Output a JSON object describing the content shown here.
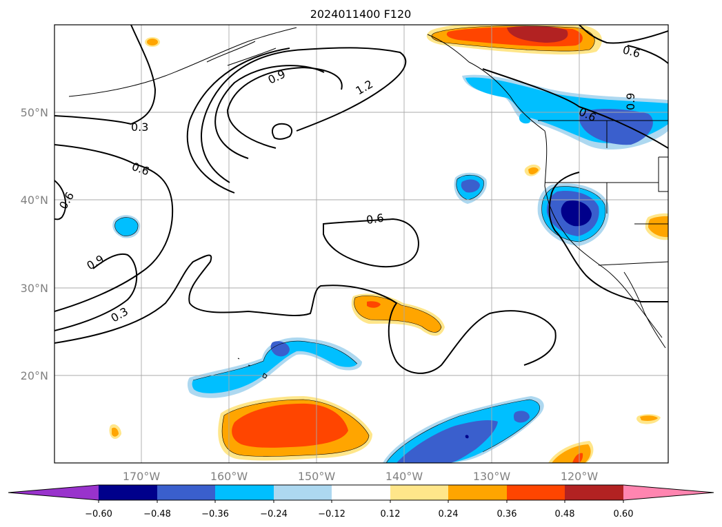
{
  "title": "2024011400 F120",
  "map": {
    "lon_range": [
      "180°",
      "110°W"
    ],
    "lat_range": [
      "10°N",
      "60°N"
    ],
    "gridlines": true,
    "lon_labels": [
      "170°W",
      "160°W",
      "150°W",
      "140°W",
      "130°W",
      "120°W"
    ],
    "lat_labels": [
      "20°N",
      "30°N",
      "40°N",
      "50°N"
    ],
    "contour_labels": [
      "0.3",
      "0.6",
      "0.6",
      "0.9",
      "1.2",
      "0.6",
      "0.9",
      "0.3",
      "0.6",
      "0.6",
      "0.9"
    ]
  },
  "colorbar": {
    "extend": "both",
    "ticks": [
      "−0.60",
      "−0.48",
      "−0.36",
      "−0.24",
      "−0.12",
      "0.12",
      "0.24",
      "0.36",
      "0.48",
      "0.60"
    ],
    "colors": [
      "#9933cc",
      "#00008b",
      "#3a5fcd",
      "#00bfff",
      "#add8f0",
      "#ffffff",
      "#ffe68a",
      "#ffa500",
      "#ff4500",
      "#b22222",
      "#ff85b0"
    ]
  }
}
